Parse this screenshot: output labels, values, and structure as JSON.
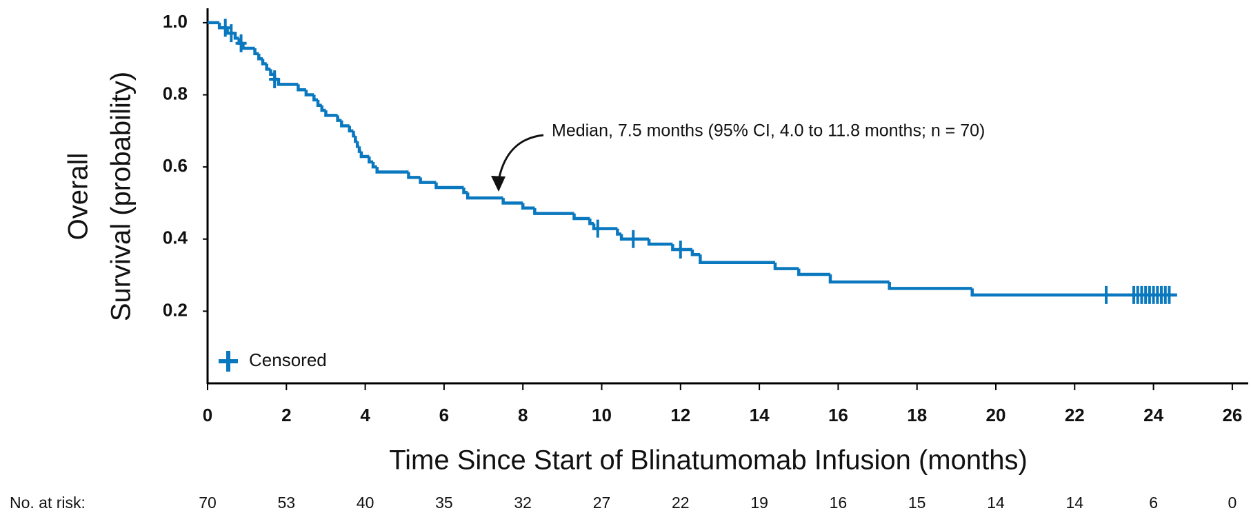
{
  "chart_data": {
    "type": "line",
    "drawstyle": "steps-post",
    "x_label": "Time Since Start of Blinatumomab Infusion (months)",
    "y_label": [
      "Overall",
      "Survival (probability)"
    ],
    "annotation": "Median, 7.5 months (95% CI, 4.0 to 11.8 months; n = 70)",
    "x": [
      0,
      0.3,
      0.5,
      0.7,
      0.8,
      0.9,
      1.2,
      1.3,
      1.4,
      1.5,
      1.6,
      1.7,
      1.8,
      2.3,
      2.5,
      2.7,
      2.8,
      2.9,
      3.0,
      3.3,
      3.4,
      3.6,
      3.7,
      3.75,
      3.8,
      3.85,
      3.9,
      4.1,
      4.2,
      4.3,
      5.1,
      5.4,
      5.8,
      6.5,
      6.6,
      7.5,
      8.0,
      8.3,
      9.3,
      9.7,
      9.8,
      10.4,
      10.5,
      11.2,
      11.8,
      12.3,
      12.5,
      14.4,
      15.0,
      15.8,
      17.3,
      19.4,
      24.6
    ],
    "series": [
      {
        "color": "#0a78be",
        "values": [
          1,
          0.986,
          0.971,
          0.957,
          0.943,
          0.929,
          0.914,
          0.9,
          0.886,
          0.871,
          0.857,
          0.843,
          0.829,
          0.814,
          0.8,
          0.786,
          0.771,
          0.757,
          0.743,
          0.729,
          0.714,
          0.7,
          0.686,
          0.671,
          0.657,
          0.643,
          0.629,
          0.614,
          0.6,
          0.586,
          0.571,
          0.557,
          0.543,
          0.529,
          0.514,
          0.5,
          0.486,
          0.471,
          0.457,
          0.443,
          0.429,
          0.414,
          0.4,
          0.386,
          0.371,
          0.357,
          0.335,
          0.318,
          0.302,
          0.281,
          0.263,
          0.245,
          0.245
        ]
      }
    ],
    "censored": {
      "name": "Censored",
      "color": "#0a78be",
      "x": [
        0.45,
        0.6,
        0.85,
        1.7,
        9.9,
        10.8,
        12.0,
        22.8,
        23.5,
        23.6,
        23.7,
        23.8,
        23.9,
        24.0,
        24.1,
        24.2,
        24.3,
        24.4
      ],
      "values": [
        0.986,
        0.971,
        0.943,
        0.843,
        0.429,
        0.4,
        0.371,
        0.245,
        0.245,
        0.245,
        0.245,
        0.245,
        0.245,
        0.245,
        0.245,
        0.245,
        0.245,
        0.245
      ]
    },
    "legend": "lower left",
    "xlim": [
      0,
      26.4
    ],
    "xticks": [
      0,
      2,
      4,
      6,
      8,
      10,
      12,
      14,
      16,
      18,
      20,
      22,
      24,
      26
    ],
    "ylim": [
      0,
      1.04
    ],
    "yticks": [
      0.2,
      0.4,
      0.6,
      0.8,
      {
        "value": 1,
        "label": "1.0"
      }
    ],
    "risk_table": {
      "label": "No. at risk:",
      "values": [
        70,
        53,
        40,
        35,
        32,
        27,
        22,
        19,
        16,
        15,
        14,
        14,
        6,
        0
      ]
    }
  }
}
